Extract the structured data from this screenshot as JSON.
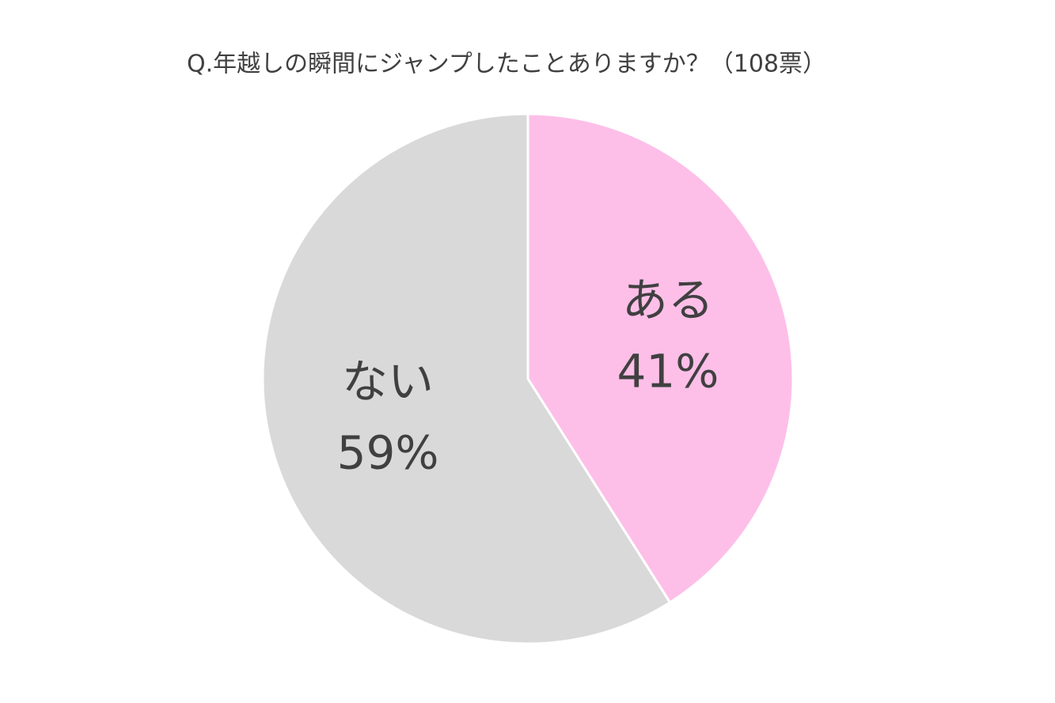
{
  "chart_data": {
    "type": "pie",
    "title": "Q.年越しの瞬間にジャンプしたことありますか？（108票）",
    "categories": [
      "ある",
      "ない"
    ],
    "values": [
      41,
      59
    ],
    "value_labels": [
      "41%",
      "59%"
    ],
    "colors": [
      "#fdbfe8",
      "#d9d9d9"
    ]
  }
}
